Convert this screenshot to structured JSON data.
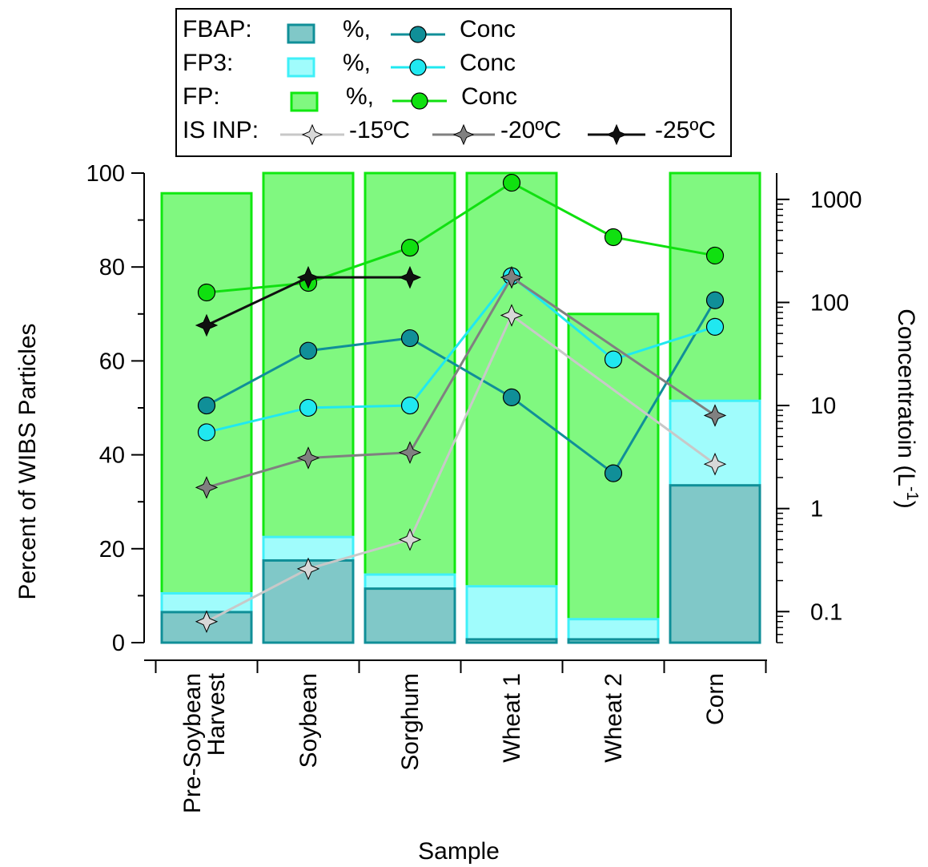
{
  "chart_data": {
    "type": "bar",
    "xlabel": "Sample",
    "ylabel_left": "Percent of WIBS Particles",
    "ylabel_right": "Concentratoin (L",
    "ylabel_right_superscript": "-1",
    "ylabel_right_suffix": ")",
    "categories": [
      "Pre-Soybean Harvest",
      "Soybean",
      "Sorghum",
      "Wheat 1",
      "Wheat 2",
      "Corn"
    ],
    "category_lines": [
      [
        "Pre-Soybean",
        "Harvest"
      ],
      [
        "Soybean"
      ],
      [
        "Sorghum"
      ],
      [
        "Wheat 1"
      ],
      [
        "Wheat 2"
      ],
      [
        "Corn"
      ]
    ],
    "ylim_left": [
      0,
      100
    ],
    "ylim_right": [
      0.05,
      1800
    ],
    "right_scale": "log",
    "y_left_ticks": [
      "0",
      "20",
      "40",
      "60",
      "80",
      "100"
    ],
    "y_right_ticks": [
      {
        "value": 0.1,
        "label": "0.1"
      },
      {
        "value": 1,
        "label": "1"
      },
      {
        "value": 10,
        "label": "10"
      },
      {
        "value": 100,
        "label": "100"
      },
      {
        "value": 1000,
        "label": "1000"
      }
    ],
    "bar_series": [
      {
        "name": "FBAP",
        "axis": "left",
        "fill": "#80c8c8",
        "stroke": "#108f98",
        "values": [
          6.5,
          17.5,
          11.5,
          0.7,
          0.7,
          33.5
        ]
      },
      {
        "name": "FP3",
        "axis": "left",
        "fill": "#a0fcfc",
        "stroke": "#40f0f8",
        "values": [
          10.5,
          22.5,
          14.5,
          12,
          5,
          51.5
        ]
      },
      {
        "name": "FP",
        "axis": "left",
        "fill": "#80f880",
        "stroke": "#10e810",
        "values": [
          95.7,
          100,
          100,
          100,
          70,
          100
        ]
      }
    ],
    "line_series": [
      {
        "name": "FBAP Conc",
        "axis": "right",
        "color": "#108f98",
        "marker": "circle",
        "values": [
          10,
          34,
          45,
          12,
          2.2,
          105
        ]
      },
      {
        "name": "FP3 Conc",
        "axis": "right",
        "color": "#20e8f0",
        "marker": "circle",
        "values": [
          5.5,
          9.5,
          10,
          180,
          28,
          58
        ]
      },
      {
        "name": "FP Conc",
        "axis": "right",
        "color": "#10e010",
        "marker": "circle",
        "values": [
          125,
          155,
          340,
          1450,
          430,
          285
        ]
      },
      {
        "name": "-15ºC",
        "axis": "right",
        "color": "#c8c8c8",
        "marker": "star",
        "values": [
          0.08,
          0.26,
          0.5,
          75,
          null,
          2.7
        ]
      },
      {
        "name": "-20ºC",
        "axis": "right",
        "color": "#808080",
        "marker": "star",
        "values": [
          1.6,
          3.1,
          3.5,
          175,
          null,
          8
        ]
      },
      {
        "name": "-25ºC",
        "axis": "right",
        "color": "#101010",
        "marker": "star",
        "values": [
          60,
          175,
          175,
          null,
          null,
          null
        ]
      }
    ],
    "legend": {
      "rows": [
        {
          "label": "FBAP:",
          "pct": "%,",
          "conc": "Conc"
        },
        {
          "label": "FP3:",
          "pct": "%,",
          "conc": "Conc"
        },
        {
          "label": "FP:",
          "pct": "%,",
          "conc": "Conc"
        }
      ],
      "inp_label": "IS INP:",
      "inp_entries": [
        "-15ºC",
        "-20ºC",
        "-25ºC"
      ]
    }
  }
}
